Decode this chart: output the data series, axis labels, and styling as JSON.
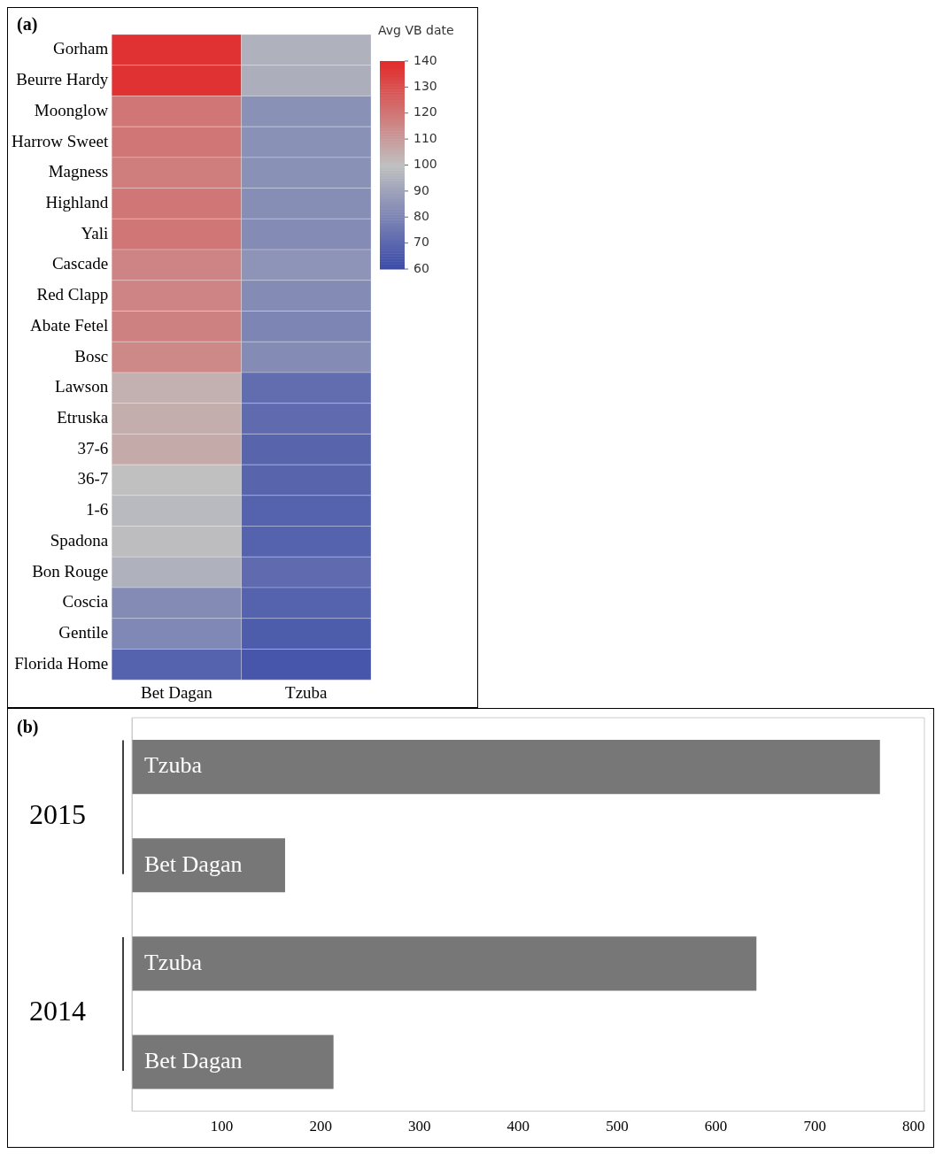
{
  "chart_data": [
    {
      "type": "heatmap",
      "clabel": "Avg VB date",
      "annotations": [
        "(a)"
      ],
      "categories": [
        "Bet Dagan",
        "Tzuba"
      ],
      "y_categories": [
        "Gorham",
        "Beurre Hardy",
        "Moonglow",
        "Harrow Sweet",
        "Magness",
        "Highland",
        "Yali",
        "Cascade",
        "Red Clapp",
        "Abate Fetel",
        "Bosc",
        "Lawson",
        "Etruska",
        "37-6",
        "36-7",
        "1-6",
        "Spadona",
        "Bon Rouge",
        "Coscia",
        "Gentile",
        "Florida Home"
      ],
      "cells": [
        [
          138,
          95
        ],
        [
          138,
          94
        ],
        [
          120,
          84
        ],
        [
          120,
          84
        ],
        [
          118,
          84
        ],
        [
          120,
          83
        ],
        [
          120,
          82
        ],
        [
          116,
          85
        ],
        [
          116,
          82
        ],
        [
          117,
          80
        ],
        [
          115,
          82
        ],
        [
          104,
          72
        ],
        [
          105,
          71
        ],
        [
          106,
          69
        ],
        [
          100,
          69
        ],
        [
          98,
          68
        ],
        [
          99,
          68
        ],
        [
          95,
          71
        ],
        [
          82,
          68
        ],
        [
          81,
          66
        ],
        [
          68,
          64
        ]
      ],
      "clim": [
        60,
        140
      ],
      "cticks": [
        60,
        70,
        80,
        90,
        100,
        110,
        120,
        130,
        140
      ]
    },
    {
      "type": "bar",
      "orientation": "horizontal",
      "annotations": [
        "(b)",
        "2015",
        "2014"
      ],
      "categories": [
        "Tzuba",
        "Bet Dagan",
        "Tzuba",
        "Bet Dagan"
      ],
      "values": [
        766,
        164,
        641,
        213
      ],
      "color": "#777777",
      "xlim": [
        9,
        811
      ],
      "xticks": [
        100,
        200,
        300,
        400,
        500,
        600,
        700,
        800
      ],
      "grid": false,
      "legend": false
    }
  ]
}
